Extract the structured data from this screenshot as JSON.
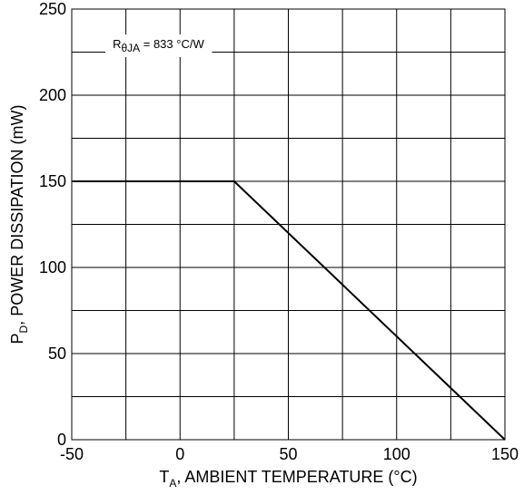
{
  "chart_data": {
    "type": "line",
    "xlabel_symbol": "T",
    "xlabel_subscript": "A",
    "xlabel_rest": ", AMBIENT TEMPERATURE (°C)",
    "ylabel_symbol": "P",
    "ylabel_subscript": "D",
    "ylabel_rest": ", POWER DISSIPATION (mW)",
    "xlim": [
      -50,
      150
    ],
    "ylim": [
      0,
      250
    ],
    "x_major_ticks": [
      -50,
      0,
      50,
      100,
      150
    ],
    "x_tick_labels": [
      "-50",
      "0",
      "50",
      "100",
      "150"
    ],
    "x_grid": [
      -50,
      -25,
      0,
      25,
      50,
      75,
      100,
      125,
      150
    ],
    "y_major_ticks": [
      0,
      50,
      100,
      150,
      200,
      250
    ],
    "y_tick_labels": [
      "0",
      "50",
      "100",
      "150",
      "200",
      "250"
    ],
    "y_grid": [
      0,
      25,
      50,
      75,
      100,
      125,
      150,
      175,
      200,
      225,
      250
    ],
    "grid": true,
    "series": [
      {
        "x": [
          -50,
          25,
          150
        ],
        "y": [
          150,
          150,
          0
        ],
        "color": "#000000"
      }
    ],
    "annotation": {
      "symbol": "R",
      "subscript": "θJA",
      "rest": " = 833 °C/W",
      "x": -10,
      "y": 230
    }
  }
}
